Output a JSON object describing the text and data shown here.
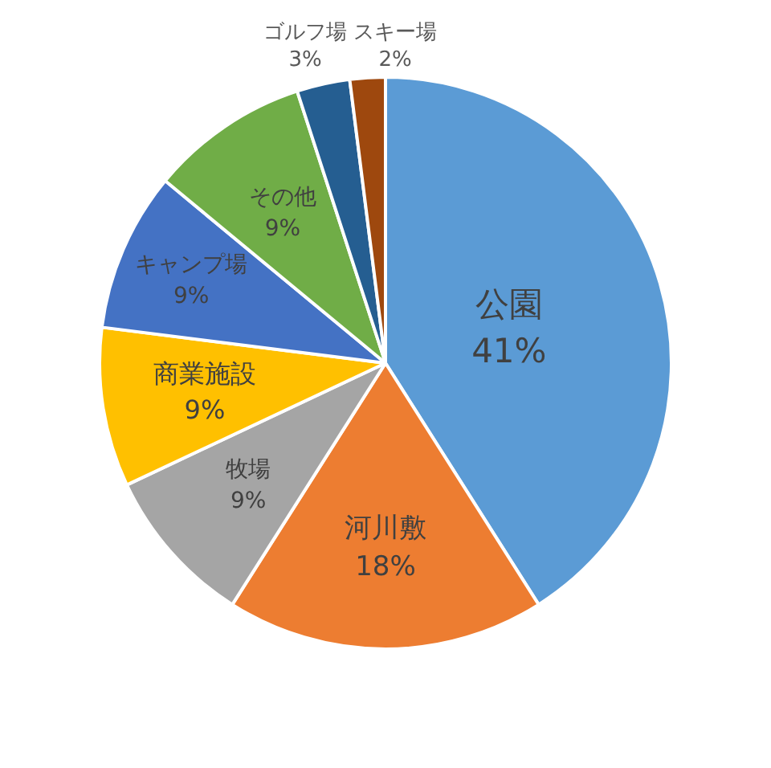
{
  "chart_data": {
    "type": "pie",
    "categories": [
      "公園",
      "河川敷",
      "牧場",
      "商業施設",
      "キャンプ場",
      "その他",
      "ゴルフ場",
      "スキー場"
    ],
    "values": [
      41,
      18,
      9,
      9,
      9,
      9,
      3,
      2
    ],
    "colors": [
      "#5b9bd5",
      "#ed7d31",
      "#a5a5a5",
      "#ffc000",
      "#4472c4",
      "#70ad47",
      "#255e91",
      "#9e480e"
    ],
    "value_labels": [
      "41%",
      "18%",
      "9%",
      "9%",
      "9%",
      "9%",
      "3%",
      "2%"
    ],
    "legend": false
  }
}
